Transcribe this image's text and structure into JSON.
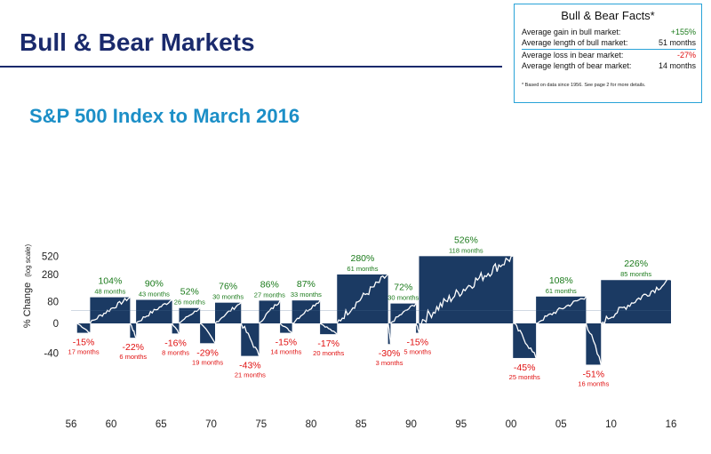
{
  "title": "Bull & Bear Markets",
  "subtitle": "S&P 500 Index to March 2016",
  "facts": {
    "title": "Bull & Bear Facts*",
    "rows": [
      {
        "label": "Average gain in bull market:",
        "value": "+155%",
        "color": "#1a7a1a"
      },
      {
        "label": "Average length of bull market:",
        "value": "51 months",
        "color": "#111111"
      },
      {
        "label": "Average loss in bear market:",
        "value": "-27%",
        "color": "#e01010"
      },
      {
        "label": "Average length of bear market:",
        "value": "14 months",
        "color": "#111111"
      }
    ],
    "footnote": "* Based on data since 1956. See page 2 for more details."
  },
  "colors": {
    "bar": "#1b3a63",
    "bull_text": "#1a7a1a",
    "bear_text": "#e01010",
    "line": "#ffffff"
  },
  "chart_data": {
    "type": "bar",
    "ylabel": "% Change",
    "ylabel_note": "(log scale)",
    "y_ticks": [
      "520",
      "280",
      "80",
      "0",
      "-40"
    ],
    "x_ticks": [
      "56",
      "60",
      "65",
      "70",
      "75",
      "80",
      "85",
      "90",
      "95",
      "00",
      "05",
      "10",
      "16"
    ],
    "series": [
      {
        "kind": "bear",
        "pct": "-15%",
        "dur": "17 months",
        "start": 1956.6,
        "end": 1957.9,
        "value": -15
      },
      {
        "kind": "bull",
        "pct": "104%",
        "dur": "48 months",
        "start": 1957.9,
        "end": 1961.9,
        "value": 104
      },
      {
        "kind": "bear",
        "pct": "-22%",
        "dur": "6 months",
        "start": 1961.9,
        "end": 1962.5,
        "value": -22
      },
      {
        "kind": "bull",
        "pct": "90%",
        "dur": "43 months",
        "start": 1962.5,
        "end": 1966.1,
        "value": 90
      },
      {
        "kind": "bear",
        "pct": "-16%",
        "dur": "8 months",
        "start": 1966.1,
        "end": 1966.8,
        "value": -16
      },
      {
        "kind": "bull",
        "pct": "52%",
        "dur": "26 months",
        "start": 1966.8,
        "end": 1968.9,
        "value": 52
      },
      {
        "kind": "bear",
        "pct": "-29%",
        "dur": "19 months",
        "start": 1968.9,
        "end": 1970.4,
        "value": -29
      },
      {
        "kind": "bull",
        "pct": "76%",
        "dur": "30 months",
        "start": 1970.4,
        "end": 1973.0,
        "value": 76
      },
      {
        "kind": "bear",
        "pct": "-43%",
        "dur": "21 months",
        "start": 1973.0,
        "end": 1974.8,
        "value": -43
      },
      {
        "kind": "bull",
        "pct": "86%",
        "dur": "27 months",
        "start": 1974.8,
        "end": 1976.9,
        "value": 86
      },
      {
        "kind": "bear",
        "pct": "-15%",
        "dur": "14 months",
        "start": 1976.9,
        "end": 1978.1,
        "value": -15
      },
      {
        "kind": "bull",
        "pct": "87%",
        "dur": "33 months",
        "start": 1978.1,
        "end": 1980.9,
        "value": 87
      },
      {
        "kind": "bear",
        "pct": "-17%",
        "dur": "20 months",
        "start": 1980.9,
        "end": 1982.6,
        "value": -17
      },
      {
        "kind": "bull",
        "pct": "280%",
        "dur": "61 months",
        "start": 1982.6,
        "end": 1987.7,
        "value": 280
      },
      {
        "kind": "bear",
        "pct": "-30%",
        "dur": "3 months",
        "start": 1987.7,
        "end": 1987.95,
        "value": -30
      },
      {
        "kind": "bull",
        "pct": "72%",
        "dur": "30 months",
        "start": 1987.95,
        "end": 1990.5,
        "value": 72
      },
      {
        "kind": "bear",
        "pct": "-15%",
        "dur": "5 months",
        "start": 1990.5,
        "end": 1990.8,
        "value": -15
      },
      {
        "kind": "bull",
        "pct": "526%",
        "dur": "118 months",
        "start": 1990.8,
        "end": 2000.2,
        "value": 526
      },
      {
        "kind": "bear",
        "pct": "-45%",
        "dur": "25 months",
        "start": 2000.2,
        "end": 2002.5,
        "value": -45
      },
      {
        "kind": "bull",
        "pct": "108%",
        "dur": "61 months",
        "start": 2002.5,
        "end": 2007.5,
        "value": 108
      },
      {
        "kind": "bear",
        "pct": "-51%",
        "dur": "16 months",
        "start": 2007.5,
        "end": 2009.0,
        "value": -51
      },
      {
        "kind": "bull",
        "pct": "226%",
        "dur": "85 months",
        "start": 2009.0,
        "end": 2016.0,
        "value": 226
      }
    ]
  }
}
